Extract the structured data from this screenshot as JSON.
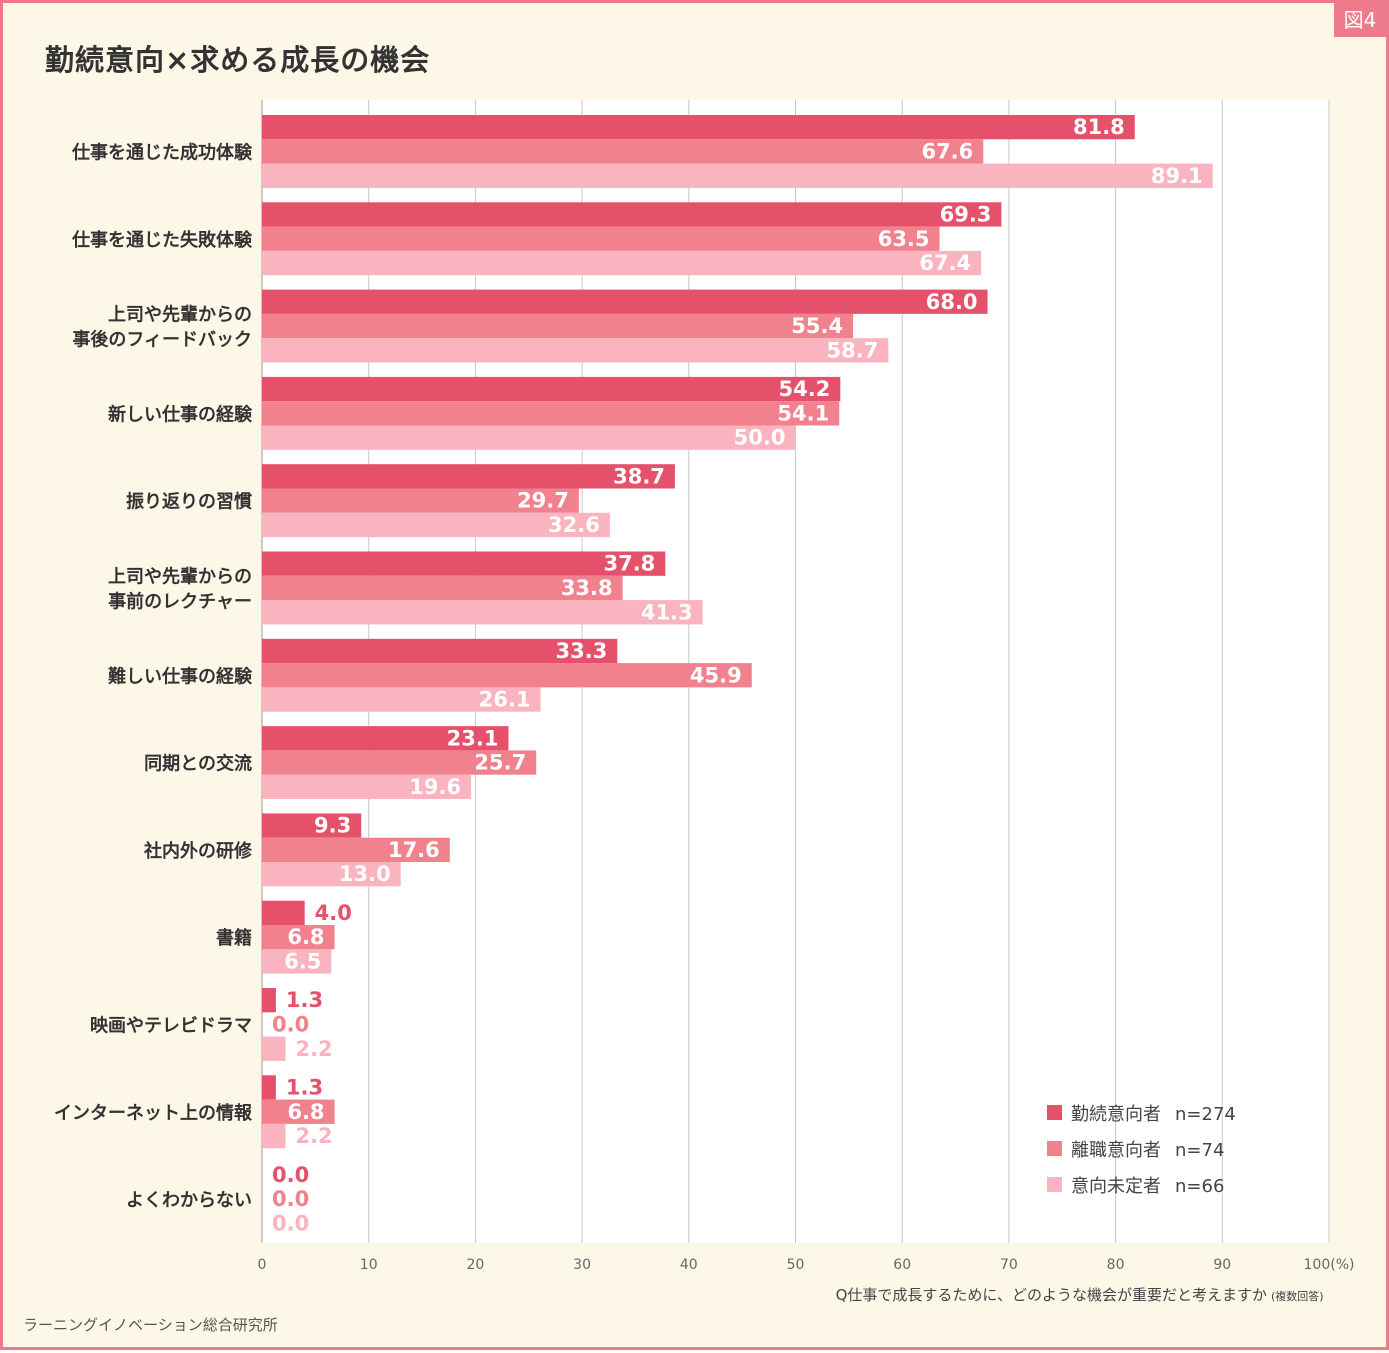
{
  "figure_label": "図4",
  "source": "ラーニングイノベーション総合研究所",
  "chart_data": {
    "type": "bar",
    "orientation": "horizontal",
    "title": "勤続意向×求める成長の機会",
    "categories": [
      "仕事を通じた成功体験",
      "仕事を通じた失敗体験",
      [
        "上司や先輩からの",
        "事後のフィードバック"
      ],
      "新しい仕事の経験",
      "振り返りの習慣",
      [
        "上司や先輩からの",
        "事前のレクチャー"
      ],
      "難しい仕事の経験",
      "同期との交流",
      "社内外の研修",
      "書籍",
      "映画やテレビドラマ",
      "インターネット上の情報",
      "よくわからない"
    ],
    "series": [
      {
        "name": "勤続意向者",
        "n_label": "n=274",
        "color": "#e5506a",
        "values": [
          81.8,
          69.3,
          68.0,
          54.2,
          38.7,
          37.8,
          33.3,
          23.1,
          9.3,
          4.0,
          1.3,
          1.3,
          0.0
        ]
      },
      {
        "name": "離職意向者",
        "n_label": "n=74",
        "color": "#f2818e",
        "values": [
          67.6,
          63.5,
          55.4,
          54.1,
          29.7,
          33.8,
          45.9,
          25.7,
          17.6,
          6.8,
          0.0,
          6.8,
          0.0
        ]
      },
      {
        "name": "意向未定者",
        "n_label": "n=66",
        "color": "#f9b4bf",
        "values": [
          89.1,
          67.4,
          58.7,
          50.0,
          32.6,
          41.3,
          26.1,
          19.6,
          13.0,
          6.5,
          2.2,
          2.2,
          0.0
        ]
      }
    ],
    "x_ticks": [
      "0",
      "10",
      "20",
      "30",
      "40",
      "50",
      "60",
      "70",
      "80",
      "90",
      "100(%)"
    ],
    "xlim": [
      0,
      100
    ],
    "xlabel": "Q仕事で成長するために、どのような機会が重要だと考えますか",
    "xlabel_note": "(複数回答)",
    "grid": true,
    "legend_position": "bottom-right"
  }
}
